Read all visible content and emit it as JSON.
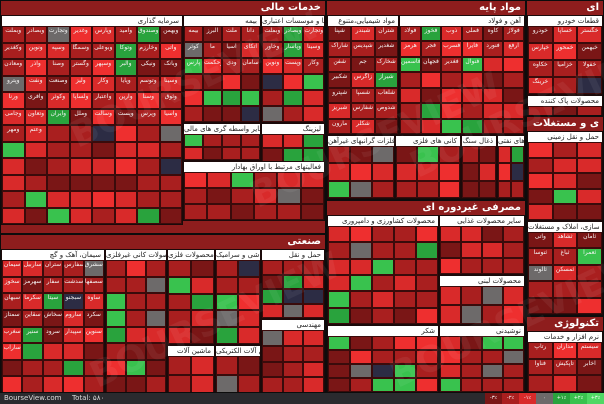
{
  "sectors": [
    {
      "title": "خدمات مالی"
    },
    {
      "title": "مواد پایه"
    },
    {
      "title": "ای"
    },
    {
      "title": "صنعتی"
    },
    {
      "title": "مصرفی غیردوره ای"
    },
    {
      "title": "ی و مستغلات"
    },
    {
      "title": "تکنولوژی"
    }
  ],
  "subsectors": {
    "capital": "سرمایه گذاری",
    "insurance": "بیمه",
    "banks": "بانکها و موسسات اعتباری",
    "other_fin": "سایر واسطه گری های مالی",
    "brokers": "فعالیتهای مرتبط با اوراق بهادار",
    "leasing": "لیزینگ",
    "chem": "مواد شیمیایی،متنوع",
    "steel": "آهن و فولاد",
    "copper": "فلزات گرانبهای غیرآهن",
    "nonmetal": "کانی های فلزی",
    "mining": "ذغال سنگ",
    "petro": "فرآورده های نفتی",
    "food": "قطعات خودرو",
    "food2": "محصولات پاک کننده",
    "cement": "سیمان، آهک و گچ",
    "metal_prod": "محصولات کانی غیرفلزی",
    "metal_tools": "محصولات فلزی",
    "ceramic": "کاشی و سرامیک",
    "railway": "حمل و نقل",
    "pharma": "محصولات کشاورزی و دامپروری",
    "dairy": "سایر محصولات غذایی",
    "food_prod": "محصولات لبنی",
    "sugar": "شکر",
    "drinks": "نوشیدنی",
    "realestate": "انبوه سازی، املاک و مستغلات",
    "it": "نرم افزار و خدمات",
    "machinery": "ماشین آلات",
    "electric": "ماشین آلات الکتریکی",
    "engineering": "مهندسی",
    "transport": "حمل و نقل زمینی"
  },
  "cell_labels": {
    "capital": [
      "وبملت",
      "وبصادر",
      "وتجارت",
      "وغدیر",
      "وپارس",
      "وامید",
      "وصندوق",
      "وبهمن",
      "وکغدیر",
      "ونوین",
      "وسپه",
      "وسمگا",
      "وبوعلی",
      "وتوکا",
      "وخارزم",
      "واتی",
      "ومعادن",
      "وآذر",
      "وصنا",
      "وگستر",
      "وسپهر",
      "والبر",
      "ونیکی",
      "وبانک",
      "وپترو",
      "ونفت",
      "وصنعت",
      "ولیز",
      "وکار",
      "وپایا",
      "وتوسم",
      "وسینا",
      "ورنا",
      "وآفری",
      "وکوثر",
      "ولساپا",
      "واعتبار",
      "وآرین",
      "وسنا",
      "وثوق",
      "وجامی",
      "وتعاون",
      "وایران",
      "وملل",
      "وسالت",
      "وپست",
      "وپرس",
      "وآسیا",
      "ومهر",
      "وعتم"
    ],
    "insurance": [
      "بیمه",
      "البرز",
      "ملت",
      "دانا",
      "کوثر",
      "ما",
      "آسیا",
      "اتکای",
      "پارس",
      "وحکمت",
      "ودی",
      "سامان"
    ],
    "banks": [
      "وبملت",
      "وبصادر",
      "وتجارت",
      "وخاور",
      "وپاسار",
      "وسینا",
      "ونوین",
      "وپست",
      "وکار"
    ],
    "chem": [
      "شپنا",
      "شبندر",
      "شتران",
      "شاراک",
      "شپدیس",
      "شغدیر",
      "شفن",
      "جم",
      "شخارک",
      "شکبیر",
      "زاگرس",
      "شیراز",
      "شپترو",
      "شسپا",
      "شلعاب",
      "شبریز",
      "شفارس",
      "شدوص",
      "مارون",
      "شکلر"
    ],
    "steel": [
      "فولاد",
      "فخوز",
      "ذوب",
      "فملی",
      "کاوه",
      "فولاژ",
      "هرمز",
      "فجر",
      "فسرب",
      "فایرا",
      "فنورد",
      "ارفع",
      "فاسمین",
      "فجهان",
      "فغدیر",
      "فنوال"
    ],
    "cement": [
      "سیمان",
      "ساربیل",
      "ستران",
      "سفارس",
      "سشرق",
      "سخوز",
      "سهرمز",
      "سفار",
      "سدشت",
      "سصفها",
      "سبهان",
      "سکرما",
      "سیتا",
      "سبجنو",
      "ساوه",
      "سمتاز",
      "سقاین",
      "سخاش",
      "ساروم",
      "سکرد",
      "سغرب",
      "سنیر",
      "سرود",
      "سپیدار",
      "سنوین",
      "ساراب"
    ],
    "food": [
      "خودرو",
      "خساپا",
      "خگستر",
      "خپارس",
      "خمحور",
      "خبهمن",
      "خکاوه",
      "خزامیا",
      "خفولا",
      "خرینگ"
    ],
    "realestate": [
      "وآتی",
      "ثشاهد",
      "ثامان",
      "ثنوسا",
      "ثباغ",
      "ثعمرا",
      "ثالوند",
      "ثمسکن"
    ],
    "it": [
      "رتاپ",
      "مداران",
      "سیستم",
      "فناوا",
      "تاپکیش",
      "اخابر"
    ]
  },
  "colors": {
    "red_dark": "#7a1616",
    "red": "#a91f1f",
    "red_bright": "#d92a2a",
    "red_hot": "#ee2f2f",
    "gray": "#6d6a6a",
    "green": "#29a33d",
    "green_bright": "#39c24e",
    "navy": "#2c2c44"
  },
  "footer": {
    "brand": "BourseView.com",
    "total": "Total: ۵۸۰"
  },
  "legend": [
    "-۳٪",
    "-۲٪",
    "-۱٪",
    "۰",
    "+۱٪",
    "+۲٪",
    "+۳٪"
  ]
}
